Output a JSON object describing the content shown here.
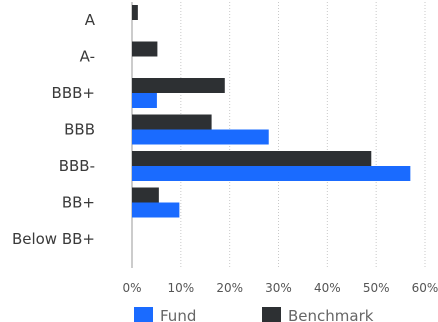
{
  "chart_data": {
    "type": "bar",
    "orientation": "horizontal",
    "categories": [
      "A",
      "A-",
      "BBB+",
      "BBB",
      "BBB-",
      "BB+",
      "Below BB+"
    ],
    "series": [
      {
        "name": "Benchmark",
        "color": "#2d3033",
        "values": [
          1.2,
          5.2,
          19.0,
          16.3,
          49.0,
          5.5,
          0
        ]
      },
      {
        "name": "Fund",
        "color": "#1a6bff",
        "values": [
          0,
          0,
          5.1,
          28.0,
          57.0,
          9.7,
          0
        ]
      }
    ],
    "xlim": [
      0,
      60
    ],
    "xticks": [
      "0%",
      "10%",
      "20%",
      "30%",
      "40%",
      "50%",
      "60%"
    ],
    "grid": true,
    "legend": {
      "placement": "bottom",
      "order": [
        "Fund",
        "Benchmark"
      ]
    },
    "title": "",
    "xlabel": "",
    "ylabel": ""
  }
}
